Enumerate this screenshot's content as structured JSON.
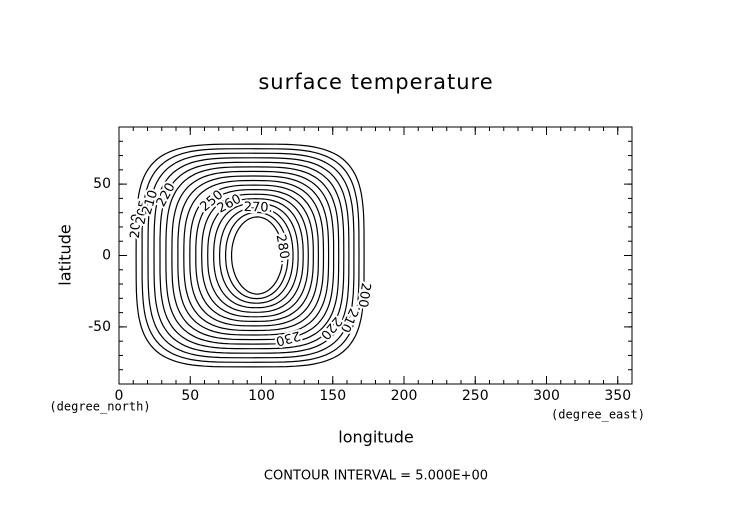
{
  "chart_data": {
    "type": "contour",
    "title": "surface temperature",
    "xlabel": "longitude",
    "ylabel": "latitude",
    "xunit": "(degree_east)",
    "yunit": "(degree_north)",
    "footer": "CONTOUR INTERVAL = 5.000E+00",
    "xlim": [
      0,
      360
    ],
    "ylim": [
      -90,
      90
    ],
    "xticks": [
      0,
      50,
      100,
      150,
      200,
      250,
      300,
      350
    ],
    "yticks": [
      -50,
      0,
      50
    ],
    "xminorticks": [
      0,
      10,
      20,
      30,
      40,
      50,
      60,
      70,
      80,
      90,
      100,
      110,
      120,
      130,
      140,
      150,
      160,
      170,
      180,
      190,
      200,
      210,
      220,
      230,
      240,
      250,
      260,
      270,
      280,
      290,
      300,
      310,
      320,
      330,
      340,
      350,
      360
    ],
    "yminorticks": [
      -90,
      -80,
      -70,
      -60,
      -50,
      -40,
      -30,
      -20,
      -10,
      0,
      10,
      20,
      30,
      40,
      50,
      60,
      70,
      80,
      90
    ],
    "levels": [
      200,
      205,
      210,
      215,
      220,
      225,
      230,
      235,
      240,
      245,
      250,
      255,
      260,
      265,
      270,
      275,
      280
    ],
    "contour_labels": [
      {
        "value": 200,
        "label": "200"
      },
      {
        "value": 205,
        "label": "205"
      },
      {
        "value": 210,
        "label": "210"
      },
      {
        "value": 220,
        "label": "220"
      },
      {
        "value": 250,
        "label": "250"
      },
      {
        "value": 260,
        "label": "260"
      },
      {
        "value": 270,
        "label": "270."
      },
      {
        "value": 280,
        "label": "280."
      },
      {
        "value": 200,
        "label": "200."
      },
      {
        "value": 210,
        "label": "210"
      },
      {
        "value": 220,
        "label": "220"
      },
      {
        "value": 230,
        "label": "230"
      }
    ],
    "color": "#000000"
  }
}
